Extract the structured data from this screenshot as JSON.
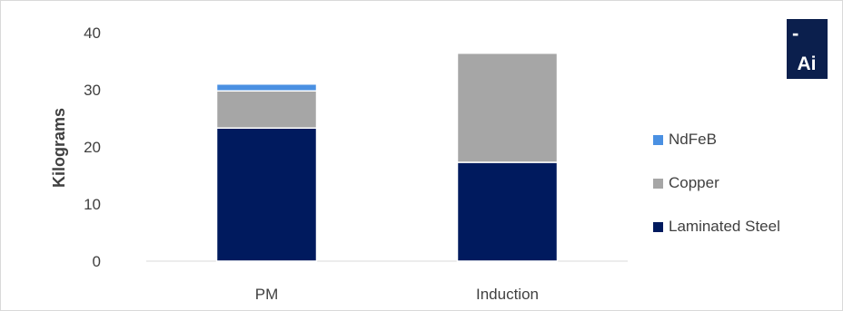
{
  "chart_data": {
    "type": "bar",
    "stacked": true,
    "categories": [
      "PM",
      "Induction"
    ],
    "series": [
      {
        "name": "Laminated Steel",
        "values": [
          23.3,
          17.3
        ],
        "color": "#001a5e"
      },
      {
        "name": "Copper",
        "values": [
          6.5,
          19.1
        ],
        "color": "#a6a6a6"
      },
      {
        "name": "NdFeB",
        "values": [
          1.2,
          0
        ],
        "color": "#4a90e2"
      }
    ],
    "xlabel": "",
    "ylabel": "Kilograms",
    "ylim": [
      0,
      40
    ],
    "yticks": [
      0,
      10,
      20,
      30,
      40
    ],
    "grid": false,
    "legend_position": "right",
    "legend_order": [
      "NdFeB",
      "Copper",
      "Laminated Steel"
    ]
  },
  "logo": {
    "text": "Ai",
    "mark": "-",
    "background": "#0b1f4d",
    "foreground": "#ffffff",
    "icon": "ai-logo-icon"
  }
}
